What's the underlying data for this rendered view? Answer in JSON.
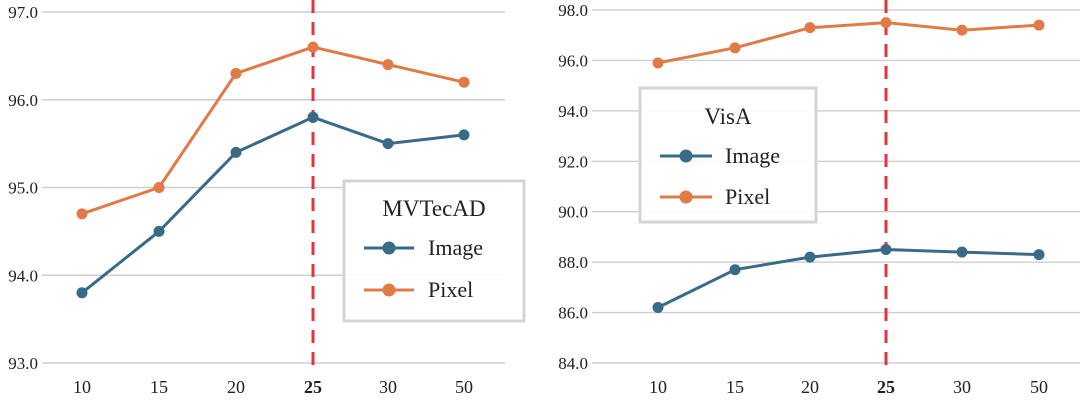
{
  "colors": {
    "image": "#3a6b86",
    "pixel": "#e07a47",
    "marker_line": "#e0353c",
    "grid": "#cfcfcf"
  },
  "chart_data": [
    {
      "type": "line",
      "legend_title": "MVTecAD",
      "legend_placement": "center-right",
      "categories": [
        "10",
        "15",
        "20",
        "25",
        "30",
        "50"
      ],
      "highlight_category": "25",
      "ylim": [
        93.0,
        97.0
      ],
      "yticks": [
        "93.0",
        "94.0",
        "95.0",
        "96.0",
        "97.0"
      ],
      "grid": true,
      "series": [
        {
          "name": "Image",
          "color_key": "image",
          "values": [
            93.8,
            94.5,
            95.4,
            95.8,
            95.5,
            95.6
          ]
        },
        {
          "name": "Pixel",
          "color_key": "pixel",
          "values": [
            94.7,
            95.0,
            96.3,
            96.6,
            96.4,
            96.2
          ]
        }
      ]
    },
    {
      "type": "line",
      "legend_title": "VisA",
      "legend_placement": "upper-left",
      "categories": [
        "10",
        "15",
        "20",
        "25",
        "30",
        "50"
      ],
      "highlight_category": "25",
      "ylim": [
        84.0,
        98.0
      ],
      "yticks": [
        "84.0",
        "86.0",
        "88.0",
        "90.0",
        "92.0",
        "94.0",
        "96.0",
        "98.0"
      ],
      "grid": true,
      "series": [
        {
          "name": "Image",
          "color_key": "image",
          "values": [
            86.2,
            87.7,
            88.2,
            88.5,
            88.4,
            88.3
          ]
        },
        {
          "name": "Pixel",
          "color_key": "pixel",
          "values": [
            95.9,
            96.5,
            97.3,
            97.5,
            97.2,
            97.4
          ]
        }
      ]
    }
  ]
}
